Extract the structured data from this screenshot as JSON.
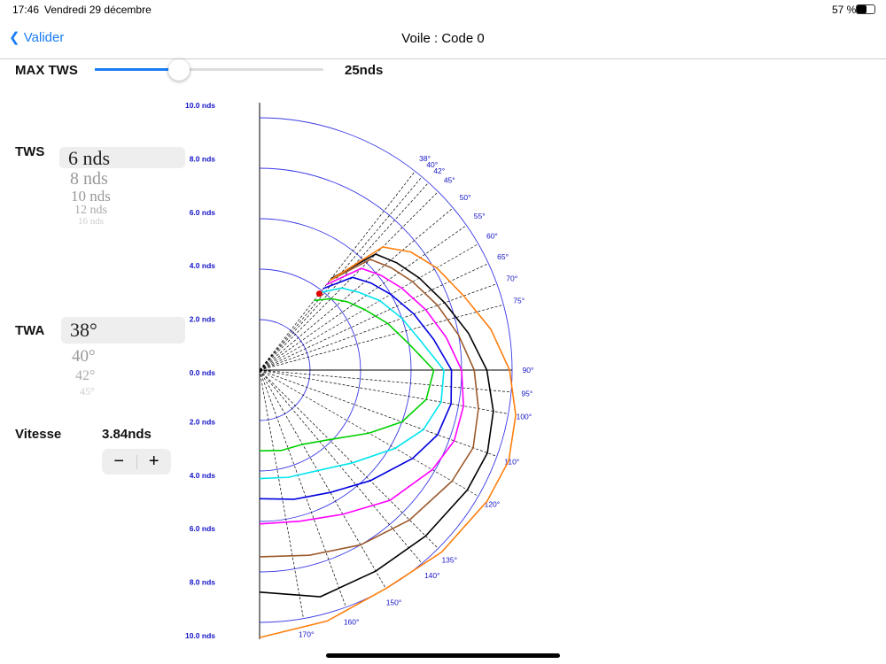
{
  "status_bar": {
    "time": "17:46",
    "date": "Vendredi 29 décembre",
    "battery": "57 %"
  },
  "nav": {
    "back": "Valider",
    "title": "Voile : Code 0"
  },
  "controls": {
    "max_tws_label": "MAX TWS",
    "max_tws_value": "25nds",
    "tws_label": "TWS",
    "tws_options": [
      "6 nds",
      "8 nds",
      "10 nds",
      "12 nds",
      "16 nds"
    ],
    "twa_label": "TWA",
    "twa_options": [
      "38°",
      "40°",
      "42°",
      "45°"
    ],
    "speed_label": "Vitesse",
    "speed": {
      "value": 3.84,
      "label": "3.84nds"
    },
    "stepper": [
      "−",
      "+"
    ]
  },
  "chart_data": {
    "type": "polar",
    "rlim": [
      0,
      10
    ],
    "radius_ticks": [
      {
        "value": 0,
        "label": "0.0 nds"
      },
      {
        "value": 2,
        "label": "2.0 nds"
      },
      {
        "value": 4,
        "label": "4.0 nds"
      },
      {
        "value": 6,
        "label": "6.0 nds"
      },
      {
        "value": 8,
        "label": "8.0 nds"
      },
      {
        "value": 10,
        "label": "10.0 nds"
      }
    ],
    "angle_ticks": [
      {
        "value": 38,
        "label": "38°"
      },
      {
        "value": 40,
        "label": "40°"
      },
      {
        "value": 42,
        "label": "42°"
      },
      {
        "value": 45,
        "label": "45°"
      },
      {
        "value": 50,
        "label": "50°"
      },
      {
        "value": 55,
        "label": "55°"
      },
      {
        "value": 60,
        "label": "60°"
      },
      {
        "value": 65,
        "label": "65°"
      },
      {
        "value": 70,
        "label": "70°"
      },
      {
        "value": 75,
        "label": "75°"
      },
      {
        "value": 90,
        "label": "90°"
      },
      {
        "value": 95,
        "label": "95°"
      },
      {
        "value": 100,
        "label": "100°"
      },
      {
        "value": 110,
        "label": "110°"
      },
      {
        "value": 120,
        "label": "120°"
      },
      {
        "value": 135,
        "label": "135°"
      },
      {
        "value": 140,
        "label": "140°"
      },
      {
        "value": 150,
        "label": "150°"
      },
      {
        "value": 160,
        "label": "160°"
      },
      {
        "value": 170,
        "label": "170°"
      }
    ],
    "x": [
      38,
      45,
      52,
      60,
      70,
      80,
      90,
      100,
      110,
      120,
      135,
      150,
      165,
      180
    ],
    "series": [
      {
        "color": "#00d000",
        "values": [
          3.5,
          4.0,
          4.4,
          4.8,
          5.4,
          6.0,
          6.9,
          6.7,
          6.0,
          5.0,
          3.9,
          3.4,
          3.3,
          3.2
        ]
      },
      {
        "color": "#00e5ee",
        "values": [
          3.9,
          4.6,
          5.0,
          5.5,
          6.0,
          6.5,
          7.3,
          7.3,
          6.9,
          6.2,
          5.2,
          4.6,
          4.4,
          4.3
        ]
      },
      {
        "color": "#0000e0",
        "values": [
          4.1,
          5.2,
          5.6,
          6.0,
          6.5,
          7.0,
          7.6,
          7.7,
          7.5,
          7.0,
          6.2,
          5.6,
          5.3,
          5.1
        ]
      },
      {
        "color": "#ff00ff",
        "values": [
          4.3,
          5.7,
          6.1,
          6.5,
          7.0,
          7.5,
          8.0,
          8.2,
          8.2,
          7.9,
          7.3,
          6.6,
          6.2,
          6.1
        ]
      },
      {
        "color": "#9c5a2c",
        "values": [
          4.5,
          6.2,
          6.6,
          7.0,
          7.5,
          8.0,
          8.5,
          8.8,
          9.0,
          8.8,
          8.4,
          8.0,
          7.6,
          7.4
        ]
      },
      {
        "color": "#000000",
        "values": [
          4.6,
          6.5,
          6.9,
          7.3,
          7.8,
          8.4,
          9.0,
          9.4,
          9.6,
          9.5,
          9.3,
          9.2,
          9.3,
          8.8
        ]
      },
      {
        "color": "#ff7f0e",
        "values": [
          4.5,
          6.9,
          7.6,
          8.1,
          8.6,
          9.3,
          9.9,
          10.3,
          10.5,
          10.4,
          10.2,
          10.0,
          10.3,
          10.6
        ]
      }
    ]
  }
}
